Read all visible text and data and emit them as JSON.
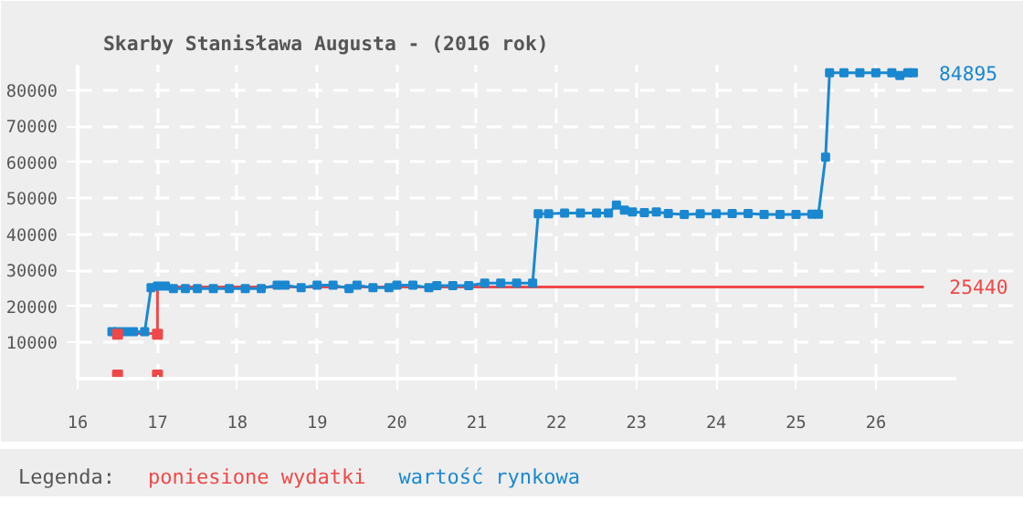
{
  "chart_data": {
    "type": "line",
    "title": "Skarby Stanisława Augusta - (2016 rok)",
    "legend_title": "Legenda:",
    "legend": "bottom",
    "grid": true,
    "marker": "square",
    "line_style": "solid",
    "xlim": [
      16,
      27
    ],
    "xticks": [
      16,
      17,
      18,
      19,
      20,
      21,
      22,
      23,
      24,
      25,
      26
    ],
    "ylim": [
      0,
      87000
    ],
    "yticks": [
      10000,
      20000,
      30000,
      40000,
      50000,
      60000,
      70000,
      80000
    ],
    "series": [
      {
        "name": "poniesione wydatki",
        "color": "#f04848",
        "marker": "none",
        "x": [
          16.5,
          17.0,
          17.0,
          26.6
        ],
        "values": [
          12500,
          12500,
          25440,
          25440
        ]
      },
      {
        "name": "wartość rynkowa",
        "color": "#1a88d0",
        "x": [
          16.43,
          16.5,
          16.6,
          16.7,
          16.84,
          16.92,
          17.0,
          17.1,
          17.2,
          17.35,
          17.5,
          17.7,
          17.9,
          18.1,
          18.3,
          18.5,
          18.6,
          18.8,
          19.0,
          19.2,
          19.4,
          19.5,
          19.7,
          19.9,
          20.0,
          20.2,
          20.4,
          20.5,
          20.7,
          20.9,
          21.1,
          21.3,
          21.5,
          21.7,
          21.77,
          21.9,
          22.1,
          22.3,
          22.5,
          22.65,
          22.75,
          22.85,
          22.95,
          23.1,
          23.25,
          23.4,
          23.6,
          23.8,
          24.0,
          24.2,
          24.4,
          24.6,
          24.8,
          25.0,
          25.2,
          25.28,
          25.37,
          25.42,
          25.6,
          25.8,
          26.0,
          26.2,
          26.3,
          26.4,
          26.47
        ],
        "values": [
          13000,
          13000,
          13000,
          13000,
          13000,
          25200,
          25700,
          25700,
          25000,
          25000,
          25000,
          25000,
          25000,
          25000,
          25000,
          25900,
          25900,
          25200,
          25900,
          25900,
          25000,
          25900,
          25200,
          25200,
          25900,
          25900,
          25200,
          25800,
          25800,
          25800,
          26500,
          26500,
          26500,
          26500,
          45700,
          45700,
          45900,
          45900,
          45900,
          45900,
          48100,
          46700,
          46200,
          46000,
          46200,
          45800,
          45500,
          45700,
          45700,
          45800,
          45800,
          45500,
          45500,
          45500,
          45600,
          45600,
          61400,
          84800,
          84800,
          84800,
          84800,
          84800,
          84000,
          84800,
          84800
        ]
      },
      {
        "color": "#f04848",
        "type": "scatter",
        "x": [
          16.5,
          16.5,
          17.0,
          17.0
        ],
        "values": [
          1000,
          12300,
          1000,
          12300
        ]
      }
    ],
    "annotations": [
      {
        "text": "84895",
        "x": 26.47,
        "y": 84800
      },
      {
        "text": "25440",
        "x": 26.6,
        "y": 25440
      }
    ]
  }
}
